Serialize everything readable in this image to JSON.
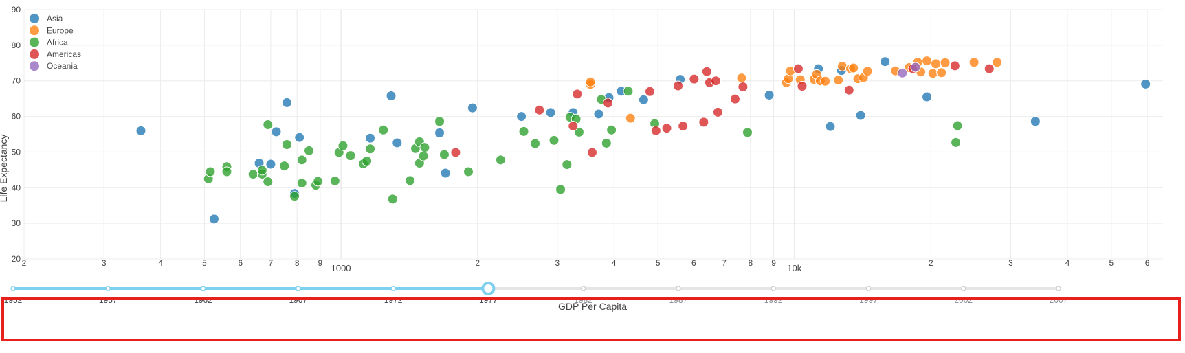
{
  "chart_data": {
    "type": "scatter",
    "title": "",
    "xlabel": "GDP Per Capita",
    "ylabel": "Life Expectancy",
    "x_scale": "log",
    "xlim": [
      200,
      65000
    ],
    "ylim": [
      20,
      90
    ],
    "y_ticks": [
      20,
      30,
      40,
      50,
      60,
      70,
      80,
      90
    ],
    "x_major_ticks": [
      {
        "value": 1000,
        "label": "1000"
      },
      {
        "value": 10000,
        "label": "10k"
      }
    ],
    "x_minor_ticks": [
      {
        "value": 200,
        "label": "2"
      },
      {
        "value": 300,
        "label": "3"
      },
      {
        "value": 400,
        "label": "4"
      },
      {
        "value": 500,
        "label": "5"
      },
      {
        "value": 600,
        "label": "6"
      },
      {
        "value": 700,
        "label": "7"
      },
      {
        "value": 800,
        "label": "8"
      },
      {
        "value": 900,
        "label": "9"
      },
      {
        "value": 2000,
        "label": "2"
      },
      {
        "value": 3000,
        "label": "3"
      },
      {
        "value": 4000,
        "label": "4"
      },
      {
        "value": 5000,
        "label": "5"
      },
      {
        "value": 6000,
        "label": "6"
      },
      {
        "value": 7000,
        "label": "7"
      },
      {
        "value": 8000,
        "label": "8"
      },
      {
        "value": 9000,
        "label": "9"
      },
      {
        "value": 20000,
        "label": "2"
      },
      {
        "value": 30000,
        "label": "3"
      },
      {
        "value": 40000,
        "label": "4"
      },
      {
        "value": 50000,
        "label": "5"
      },
      {
        "value": 60000,
        "label": "6"
      }
    ],
    "grid": true,
    "legend_position": "top-left",
    "series": [
      {
        "name": "Asia",
        "color": "#1f77b4",
        "points": [
          [
            362,
            56.0
          ],
          [
            525,
            31.2
          ],
          [
            660,
            46.9
          ],
          [
            700,
            46.6
          ],
          [
            720,
            55.7
          ],
          [
            760,
            63.9
          ],
          [
            790,
            38.4
          ],
          [
            810,
            54.1
          ],
          [
            1160,
            53.9
          ],
          [
            1290,
            65.8
          ],
          [
            1330,
            52.6
          ],
          [
            1650,
            55.4
          ],
          [
            1700,
            44.1
          ],
          [
            1950,
            62.4
          ],
          [
            2500,
            60.0
          ],
          [
            2900,
            61.1
          ],
          [
            3250,
            61.1
          ],
          [
            3700,
            60.7
          ],
          [
            3900,
            65.3
          ],
          [
            4150,
            67.1
          ],
          [
            4650,
            64.7
          ],
          [
            5600,
            70.4
          ],
          [
            8800,
            66.0
          ],
          [
            11300,
            73.4
          ],
          [
            12000,
            57.2
          ],
          [
            12700,
            72.9
          ],
          [
            14000,
            60.3
          ],
          [
            15850,
            75.4
          ],
          [
            19600,
            65.5
          ],
          [
            59500,
            69.1
          ],
          [
            34000,
            58.6
          ]
        ]
      },
      {
        "name": "Europe",
        "color": "#ff7f0e",
        "points": [
          [
            3550,
            69.0
          ],
          [
            3550,
            69.7
          ],
          [
            4350,
            59.5
          ],
          [
            7650,
            70.8
          ],
          [
            9600,
            69.5
          ],
          [
            9700,
            70.6
          ],
          [
            9800,
            72.8
          ],
          [
            10300,
            70.3
          ],
          [
            11050,
            70.4
          ],
          [
            11200,
            71.8
          ],
          [
            11400,
            70.0
          ],
          [
            11700,
            69.9
          ],
          [
            12500,
            70.2
          ],
          [
            12750,
            74.1
          ],
          [
            13300,
            73.4
          ],
          [
            13500,
            73.6
          ],
          [
            13800,
            70.6
          ],
          [
            14200,
            70.9
          ],
          [
            14500,
            72.7
          ],
          [
            16700,
            72.8
          ],
          [
            17900,
            73.7
          ],
          [
            18700,
            75.2
          ],
          [
            19000,
            72.5
          ],
          [
            19600,
            75.6
          ],
          [
            20200,
            72.1
          ],
          [
            20500,
            74.8
          ],
          [
            21100,
            72.3
          ],
          [
            21500,
            75.1
          ],
          [
            24900,
            75.2
          ],
          [
            28000,
            75.2
          ]
        ]
      },
      {
        "name": "Africa",
        "color": "#2ca02c",
        "points": [
          [
            510,
            42.5
          ],
          [
            515,
            44.5
          ],
          [
            560,
            45.9
          ],
          [
            560,
            44.5
          ],
          [
            640,
            43.8
          ],
          [
            670,
            43.8
          ],
          [
            670,
            44.9
          ],
          [
            690,
            57.7
          ],
          [
            690,
            41.7
          ],
          [
            750,
            46.1
          ],
          [
            760,
            52.1
          ],
          [
            790,
            37.6
          ],
          [
            820,
            47.8
          ],
          [
            820,
            41.3
          ],
          [
            850,
            50.4
          ],
          [
            880,
            40.7
          ],
          [
            890,
            41.8
          ],
          [
            970,
            41.9
          ],
          [
            990,
            49.9
          ],
          [
            1010,
            51.8
          ],
          [
            1050,
            49.0
          ],
          [
            1120,
            46.7
          ],
          [
            1140,
            47.5
          ],
          [
            1160,
            50.9
          ],
          [
            1240,
            56.2
          ],
          [
            1300,
            36.8
          ],
          [
            1420,
            42.0
          ],
          [
            1460,
            51.0
          ],
          [
            1490,
            52.9
          ],
          [
            1490,
            46.9
          ],
          [
            1520,
            48.9
          ],
          [
            1530,
            51.3
          ],
          [
            1650,
            58.6
          ],
          [
            1690,
            49.3
          ],
          [
            1910,
            44.5
          ],
          [
            2250,
            47.8
          ],
          [
            2530,
            55.8
          ],
          [
            2680,
            52.4
          ],
          [
            2950,
            53.3
          ],
          [
            3050,
            39.5
          ],
          [
            3150,
            46.5
          ],
          [
            3200,
            59.8
          ],
          [
            3300,
            59.3
          ],
          [
            3350,
            55.6
          ],
          [
            3750,
            64.8
          ],
          [
            3850,
            52.5
          ],
          [
            3950,
            56.2
          ],
          [
            4300,
            67.1
          ],
          [
            4920,
            58.0
          ],
          [
            7880,
            55.5
          ],
          [
            22700,
            52.7
          ],
          [
            22900,
            57.4
          ]
        ]
      },
      {
        "name": "Americas",
        "color": "#d62728",
        "points": [
          [
            1790,
            49.9
          ],
          [
            2740,
            61.8
          ],
          [
            3250,
            57.3
          ],
          [
            3320,
            66.3
          ],
          [
            3580,
            49.9
          ],
          [
            3880,
            63.8
          ],
          [
            4800,
            67.0
          ],
          [
            4950,
            56.0
          ],
          [
            5230,
            56.7
          ],
          [
            5540,
            68.6
          ],
          [
            5680,
            57.3
          ],
          [
            6010,
            70.5
          ],
          [
            6310,
            58.4
          ],
          [
            6410,
            72.6
          ],
          [
            6500,
            69.5
          ],
          [
            6710,
            70.0
          ],
          [
            6780,
            61.2
          ],
          [
            7400,
            64.9
          ],
          [
            7700,
            68.3
          ],
          [
            10200,
            73.4
          ],
          [
            10400,
            68.5
          ],
          [
            13200,
            67.4
          ],
          [
            18250,
            73.4
          ],
          [
            22600,
            74.2
          ],
          [
            26900,
            73.4
          ]
        ]
      },
      {
        "name": "Oceania",
        "color": "#9467bd",
        "points": [
          [
            17300,
            72.2
          ],
          [
            18500,
            73.8
          ]
        ]
      }
    ]
  },
  "slider": {
    "label": "GDP Per Capita",
    "steps": [
      "1952",
      "1957",
      "1962",
      "1967",
      "1972",
      "1977",
      "1982",
      "1987",
      "1992",
      "1997",
      "2002",
      "2007"
    ],
    "active_index": 5,
    "active_color": "#7fcfee",
    "inactive_color": "#e5e5e5"
  }
}
